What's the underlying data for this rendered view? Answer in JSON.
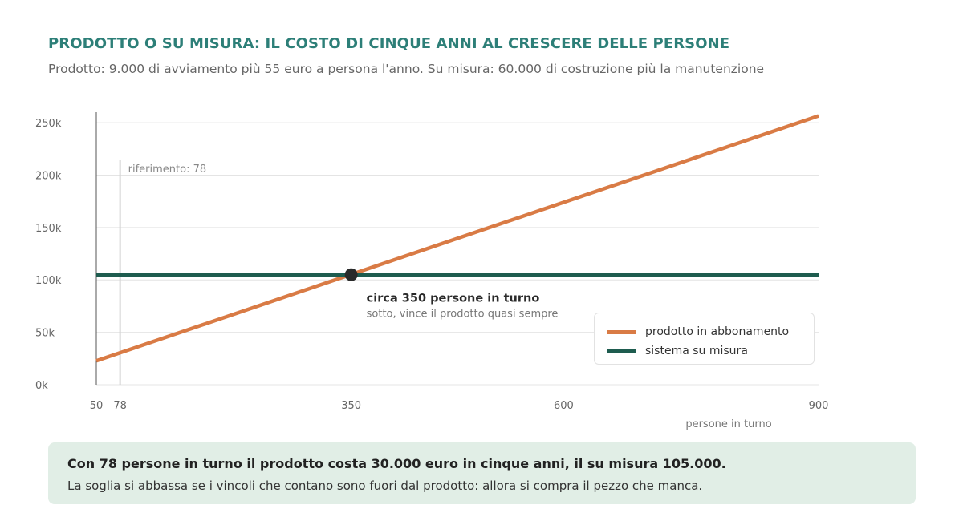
{
  "header": {
    "title": "PRODOTTO O SU MISURA: IL COSTO DI CINQUE ANNI AL CRESCERE DELLE PERSONE",
    "subtitle": "Prodotto: 9.000 di avviamento più 55 euro a persona l'anno. Su misura: 60.000 di costruzione più la manutenzione"
  },
  "callout": {
    "main": "Con 78 persone in turno il prodotto costa 30.000 euro in cinque anni, il su misura 105.000.",
    "sub": "La soglia si abbassa se i vincoli che contano sono fuori dal prodotto: allora si compra il pezzo che manca."
  },
  "colors": {
    "product": "#d97b45",
    "custom": "#1e5c4f",
    "title": "#2d7f78",
    "callout_bg": "#e1eee6"
  },
  "chart_data": {
    "type": "line",
    "xlabel": "persone in turno",
    "ylabel": "",
    "xlim": [
      50,
      900
    ],
    "ylim": [
      0,
      260000
    ],
    "x_ticks": [
      {
        "value": 50,
        "label": "50"
      },
      {
        "value": 78,
        "label": "78"
      },
      {
        "value": 350,
        "label": "350"
      },
      {
        "value": 600,
        "label": "600"
      },
      {
        "value": 900,
        "label": "900"
      }
    ],
    "y_ticks": [
      {
        "value": 0,
        "label": "0k"
      },
      {
        "value": 50000,
        "label": "50k"
      },
      {
        "value": 100000,
        "label": "100k"
      },
      {
        "value": 150000,
        "label": "150k"
      },
      {
        "value": 200000,
        "label": "200k"
      },
      {
        "value": 250000,
        "label": "250k"
      }
    ],
    "grid": true,
    "series": [
      {
        "name": "prodotto in abbonamento",
        "x": [
          50,
          900
        ],
        "y": [
          22750,
          256500
        ]
      },
      {
        "name": "sistema su misura",
        "x": [
          50,
          900
        ],
        "y": [
          105000,
          105000
        ]
      }
    ],
    "reference_line": {
      "x": 78,
      "label": "riferimento: 78"
    },
    "crossover": {
      "x": 350,
      "y": 105000,
      "label": "circa 350 persone in turno",
      "sublabel": "sotto, vince il prodotto quasi sempre"
    },
    "legend_position": "bottom-right"
  }
}
